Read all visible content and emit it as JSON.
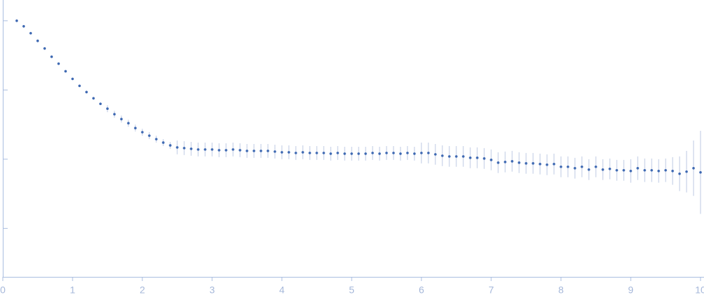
{
  "chart_data": {
    "type": "scatter",
    "x": [
      0.2,
      0.3,
      0.4,
      0.5,
      0.6,
      0.7,
      0.8,
      0.9,
      1.0,
      1.1,
      1.2,
      1.3,
      1.4,
      1.5,
      1.6,
      1.7,
      1.8,
      1.9,
      2.0,
      2.1,
      2.2,
      2.3,
      2.4,
      2.5,
      2.6,
      2.7,
      2.8,
      2.9,
      3.0,
      3.1,
      3.2,
      3.3,
      3.4,
      3.5,
      3.6,
      3.7,
      3.8,
      3.9,
      4.0,
      4.1,
      4.2,
      4.3,
      4.4,
      4.5,
      4.6,
      4.7,
      4.8,
      4.9,
      5.0,
      5.1,
      5.2,
      5.3,
      5.4,
      5.5,
      5.6,
      5.7,
      5.8,
      5.9,
      6.0,
      6.1,
      6.2,
      6.3,
      6.4,
      6.5,
      6.6,
      6.7,
      6.8,
      6.9,
      7.0,
      7.1,
      7.2,
      7.3,
      7.4,
      7.5,
      7.6,
      7.7,
      7.8,
      7.9,
      8.0,
      8.1,
      8.2,
      8.3,
      8.4,
      8.5,
      8.6,
      8.7,
      8.8,
      8.9,
      9.0,
      9.1,
      9.2,
      9.3,
      9.4,
      9.5,
      9.6,
      9.7,
      9.8,
      9.9,
      10.0
    ],
    "values": [
      3.0,
      2.92,
      2.82,
      2.71,
      2.6,
      2.48,
      2.38,
      2.27,
      2.16,
      2.06,
      1.97,
      1.88,
      1.8,
      1.73,
      1.65,
      1.58,
      1.52,
      1.45,
      1.39,
      1.34,
      1.29,
      1.24,
      1.2,
      1.17,
      1.16,
      1.15,
      1.14,
      1.14,
      1.14,
      1.13,
      1.13,
      1.14,
      1.13,
      1.12,
      1.12,
      1.12,
      1.12,
      1.11,
      1.1,
      1.1,
      1.09,
      1.1,
      1.09,
      1.09,
      1.09,
      1.08,
      1.09,
      1.08,
      1.08,
      1.08,
      1.08,
      1.09,
      1.08,
      1.09,
      1.09,
      1.08,
      1.09,
      1.08,
      1.09,
      1.09,
      1.07,
      1.05,
      1.04,
      1.04,
      1.04,
      1.02,
      1.02,
      1.01,
      0.99,
      0.95,
      0.96,
      0.97,
      0.95,
      0.94,
      0.94,
      0.93,
      0.92,
      0.93,
      0.89,
      0.89,
      0.87,
      0.89,
      0.85,
      0.89,
      0.85,
      0.86,
      0.84,
      0.84,
      0.83,
      0.87,
      0.84,
      0.84,
      0.83,
      0.84,
      0.83,
      0.79,
      0.82,
      0.87,
      0.81
    ],
    "errors": [
      0.02,
      0.02,
      0.02,
      0.02,
      0.02,
      0.02,
      0.02,
      0.02,
      0.02,
      0.02,
      0.02,
      0.02,
      0.02,
      0.05,
      0.05,
      0.05,
      0.05,
      0.05,
      0.05,
      0.05,
      0.05,
      0.05,
      0.05,
      0.1,
      0.1,
      0.1,
      0.1,
      0.1,
      0.1,
      0.1,
      0.1,
      0.1,
      0.1,
      0.1,
      0.1,
      0.1,
      0.1,
      0.1,
      0.1,
      0.1,
      0.1,
      0.1,
      0.1,
      0.1,
      0.1,
      0.1,
      0.1,
      0.1,
      0.1,
      0.1,
      0.1,
      0.1,
      0.1,
      0.1,
      0.1,
      0.1,
      0.1,
      0.1,
      0.15,
      0.15,
      0.15,
      0.15,
      0.15,
      0.15,
      0.15,
      0.15,
      0.15,
      0.15,
      0.15,
      0.15,
      0.15,
      0.15,
      0.15,
      0.15,
      0.15,
      0.15,
      0.15,
      0.15,
      0.15,
      0.15,
      0.15,
      0.15,
      0.15,
      0.15,
      0.15,
      0.15,
      0.15,
      0.15,
      0.17,
      0.17,
      0.17,
      0.17,
      0.17,
      0.17,
      0.2,
      0.25,
      0.3,
      0.4,
      0.6
    ],
    "color": "#3d68b2",
    "error_color": "#bccae3",
    "xlim": [
      0,
      10
    ],
    "xticks": [
      0,
      1,
      2,
      3,
      4,
      5,
      6,
      7,
      8,
      9,
      10
    ],
    "ylim": [
      -0.7,
      3.3
    ],
    "yticks": [
      0,
      1,
      2,
      3
    ]
  }
}
